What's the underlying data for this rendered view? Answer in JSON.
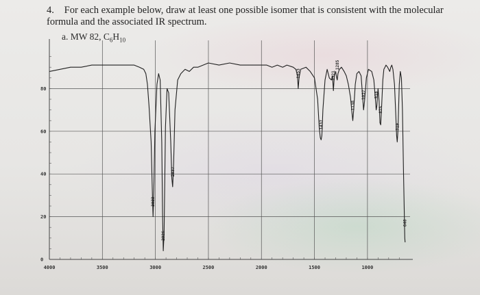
{
  "question": {
    "number": "4.",
    "text": "For each example below, draw at least one possible isomer that is consistent with the molecular formula and the associated IR spectrum.",
    "part": "a. MW 82,",
    "formula_prefix": "C",
    "formula_sub1": "6",
    "formula_mid": "H",
    "formula_sub2": "10"
  },
  "chart_data": {
    "type": "line",
    "title": "",
    "xlabel": "",
    "ylabel": "",
    "x_reversed": true,
    "xlim": [
      4000,
      650
    ],
    "ylim": [
      0,
      100
    ],
    "grid": true,
    "x_ticks": [
      "4000",
      "3500",
      "3000",
      "2500",
      "2000",
      "1500",
      "1000"
    ],
    "y_ticks": [
      "0",
      "20",
      "40",
      "60",
      "80"
    ],
    "series": [
      {
        "x": [
          4000,
          3900,
          3800,
          3700,
          3600,
          3500,
          3400,
          3300,
          3200,
          3150,
          3110,
          3090,
          3075,
          3060,
          3040,
          3028,
          3022,
          3015,
          3005,
          2985,
          2970,
          2955,
          2940,
          2932,
          2926,
          2918,
          2905,
          2890,
          2875,
          2855,
          2845,
          2837,
          2828,
          2815,
          2790,
          2760,
          2720,
          2680,
          2640,
          2600,
          2500,
          2400,
          2300,
          2200,
          2100,
          2000,
          1950,
          1900,
          1850,
          1800,
          1760,
          1700,
          1675,
          1660,
          1653,
          1645,
          1630,
          1580,
          1540,
          1500,
          1470,
          1455,
          1445,
          1437,
          1430,
          1420,
          1400,
          1380,
          1360,
          1340,
          1330,
          1321,
          1312,
          1300,
          1290,
          1285,
          1278,
          1265,
          1245,
          1220,
          1200,
          1180,
          1160,
          1145,
          1138,
          1130,
          1115,
          1100,
          1080,
          1060,
          1045,
          1037,
          1028,
          1010,
          990,
          960,
          940,
          925,
          918,
          911,
          900,
          890,
          882,
          875,
          868,
          855,
          845,
          835,
          825,
          810,
          800,
          790,
          780,
          770,
          760,
          745,
          735,
          725,
          719,
          713,
          700,
          690,
          680,
          670,
          660,
          648,
          645
        ],
        "y": [
          88,
          89,
          90,
          90,
          91,
          91,
          91,
          91,
          91,
          90,
          89,
          87,
          82,
          72,
          55,
          30,
          20,
          32,
          60,
          82,
          87,
          84,
          55,
          20,
          4,
          12,
          62,
          80,
          78,
          55,
          38,
          34,
          45,
          70,
          84,
          87,
          89,
          88,
          90,
          90,
          92,
          91,
          92,
          91,
          91,
          91,
          91,
          90,
          91,
          90,
          91,
          90,
          89,
          86,
          80,
          85,
          89,
          90,
          88,
          85,
          75,
          62,
          57,
          56,
          58,
          70,
          84,
          89,
          85,
          84,
          86,
          79,
          86,
          88,
          85,
          84,
          87,
          89,
          90,
          88,
          86,
          82,
          76,
          68,
          65,
          70,
          82,
          87,
          88,
          86,
          76,
          70,
          74,
          85,
          89,
          88,
          84,
          75,
          70,
          72,
          80,
          74,
          64,
          63,
          70,
          84,
          89,
          90,
          91,
          90,
          89,
          88,
          90,
          91,
          89,
          82,
          70,
          58,
          55,
          60,
          82,
          88,
          85,
          70,
          40,
          10,
          8
        ]
      }
    ],
    "peak_labels": [
      "3022",
      "2926",
      "2837",
      "1653",
      "1437",
      "1321",
      "1285",
      "1138",
      "1037",
      "918",
      "875",
      "719",
      "648"
    ],
    "peak_positions": [
      3022,
      2926,
      2837,
      1653,
      1437,
      1321,
      1285,
      1138,
      1037,
      918,
      875,
      719,
      648
    ]
  }
}
